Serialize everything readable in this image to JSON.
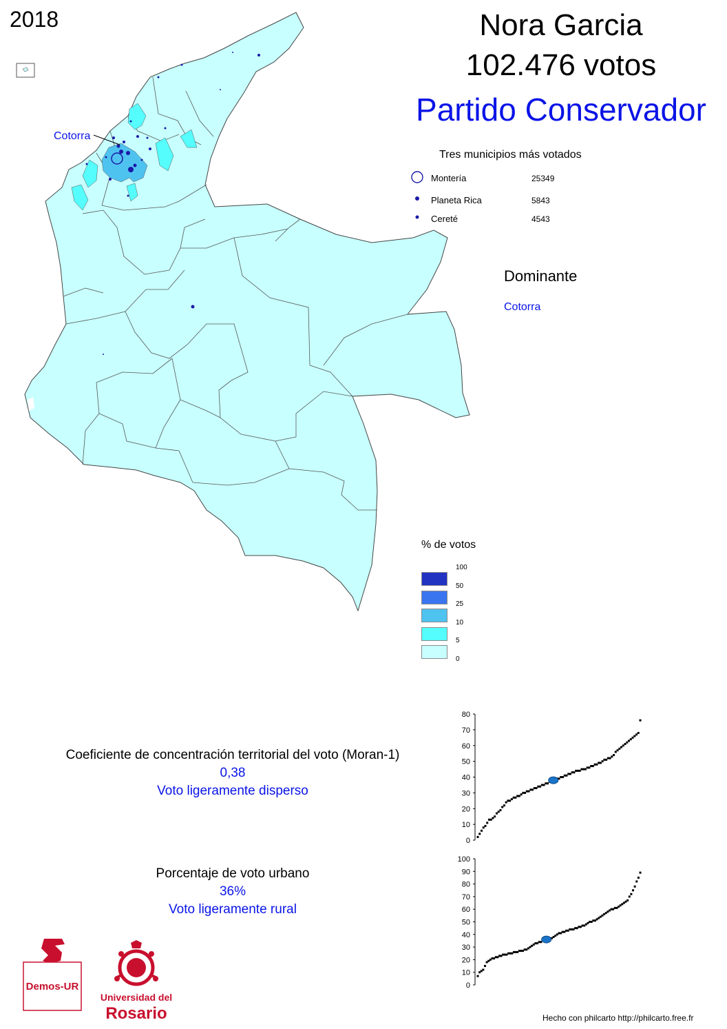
{
  "year": "2018",
  "candidate": {
    "name": "Nora Garcia",
    "votes": "102.476 votos",
    "party": "Partido Conservador",
    "party_color": "#0a14e6"
  },
  "map_labels": {
    "highlight": "Cotorra"
  },
  "top_municipalities": {
    "title": "Tres municipios más votados",
    "rows": [
      {
        "name": "Montería",
        "value": "25349"
      },
      {
        "name": "Planeta Rica",
        "value": "5843"
      },
      {
        "name": "Cereté",
        "value": "4543"
      }
    ]
  },
  "dominant": {
    "title": "Dominante",
    "name": "Cotorra"
  },
  "legend": {
    "title": "% de votos",
    "classes": [
      {
        "label": "100",
        "color": "#2233c2"
      },
      {
        "label": "50",
        "color": "#3a75f0"
      },
      {
        "label": "25",
        "color": "#4fc3f0"
      },
      {
        "label": "10",
        "color": "#55fdfd"
      },
      {
        "label": "5",
        "color": "#c8ffff"
      },
      {
        "label": "0",
        "color": ""
      }
    ]
  },
  "moran": {
    "title": "Coeficiente de concentración territorial del voto (Moran-1)",
    "value": "0,38",
    "interpretation": "Voto ligeramente disperso"
  },
  "urban": {
    "title": "Porcentaje de voto urbano",
    "value": "36%",
    "interpretation": "Voto ligeramente rural"
  },
  "logos": {
    "demos": "Demos-UR",
    "university_line1": "Universidad del",
    "university_line2": "Rosario"
  },
  "credit": "Hecho con philcarto http://philcarto.free.fr",
  "chart_data": [
    {
      "type": "scatter",
      "title": "",
      "ylim": [
        0,
        80
      ],
      "y_ticks": [
        "0",
        "10",
        "20",
        "30",
        "40",
        "50",
        "60",
        "70",
        "80"
      ],
      "highlight_value": 38,
      "values": [
        2,
        4,
        6,
        8,
        9,
        11,
        13,
        13,
        14,
        15,
        17,
        18,
        19,
        21,
        22,
        24,
        25,
        25,
        26,
        27,
        27,
        28,
        28,
        29,
        30,
        30,
        31,
        31,
        32,
        32,
        33,
        33,
        34,
        34,
        35,
        35,
        36,
        36,
        37,
        37,
        38,
        38,
        39,
        39,
        40,
        40,
        41,
        41,
        42,
        42,
        43,
        43,
        44,
        44,
        44,
        45,
        45,
        45,
        46,
        46,
        47,
        47,
        48,
        48,
        49,
        49,
        50,
        51,
        51,
        52,
        52,
        53,
        54,
        56,
        57,
        58,
        59,
        60,
        61,
        62,
        63,
        64,
        65,
        66,
        67,
        68,
        76
      ]
    },
    {
      "type": "scatter",
      "title": "",
      "ylim": [
        0,
        100
      ],
      "y_ticks": [
        "0",
        "10",
        "20",
        "30",
        "40",
        "50",
        "60",
        "70",
        "80",
        "90",
        "100"
      ],
      "highlight_value": 36,
      "values": [
        7,
        10,
        11,
        12,
        15,
        18,
        19,
        20,
        21,
        21,
        22,
        22,
        23,
        23,
        24,
        24,
        24,
        25,
        25,
        25,
        26,
        26,
        26,
        27,
        27,
        27,
        28,
        28,
        29,
        30,
        31,
        32,
        33,
        33,
        34,
        34,
        35,
        35,
        36,
        36,
        37,
        37,
        38,
        39,
        40,
        41,
        41,
        42,
        42,
        43,
        43,
        44,
        44,
        44,
        45,
        45,
        46,
        46,
        47,
        47,
        48,
        49,
        50,
        50,
        51,
        51,
        52,
        53,
        54,
        55,
        56,
        57,
        58,
        59,
        60,
        60,
        61,
        61,
        62,
        63,
        64,
        65,
        66,
        67,
        70,
        72,
        75,
        78,
        82,
        85,
        89
      ]
    }
  ]
}
